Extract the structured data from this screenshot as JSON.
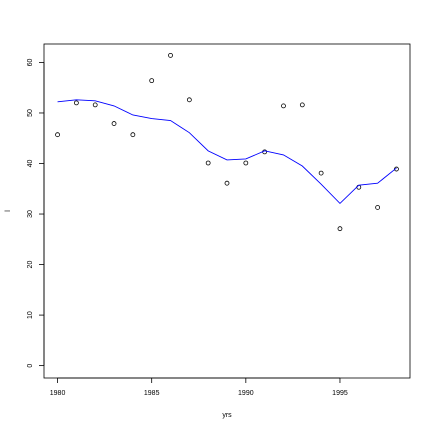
{
  "chart_data": {
    "type": "scatter",
    "x_label": "yrs",
    "y_label": "l",
    "x": [
      1980,
      1981,
      1982,
      1983,
      1984,
      1985,
      1986,
      1987,
      1988,
      1989,
      1990,
      1991,
      1992,
      1993,
      1994,
      1995,
      1996,
      1997,
      1998
    ],
    "series": [
      {
        "style": "points",
        "color": "#000000",
        "values": [
          45.7,
          52.0,
          51.6,
          47.9,
          45.7,
          56.4,
          61.4,
          52.6,
          40.1,
          36.1,
          40.1,
          42.3,
          51.4,
          51.6,
          38.1,
          27.1,
          35.3,
          31.3,
          38.9
        ]
      },
      {
        "style": "line",
        "color": "#0000ff",
        "values": [
          52.2,
          52.6,
          52.4,
          51.4,
          49.6,
          48.9,
          48.5,
          46.1,
          42.5,
          40.7,
          40.9,
          42.5,
          41.7,
          39.5,
          35.9,
          32.1,
          35.7,
          36.1,
          39.1
        ]
      }
    ],
    "xlim": [
      1979.28,
      1998.72
    ],
    "ylim": [
      -2.45,
      63.65
    ],
    "xticks": [
      1980,
      1985,
      1990,
      1995
    ],
    "yticks": [
      0,
      10,
      20,
      30,
      40,
      50,
      60
    ]
  }
}
